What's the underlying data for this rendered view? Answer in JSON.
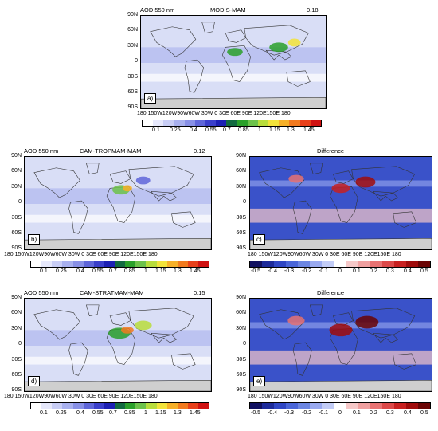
{
  "chart_data": [
    {
      "id": "a",
      "type": "heatmap",
      "variable_label": "AOD 550 nm",
      "title": "MODIS-MAM",
      "global_mean": "0.18",
      "panel_label": "a)",
      "y_tick_labels": [
        "90N",
        "60N",
        "30N",
        "0",
        "30S",
        "60S",
        "90S"
      ],
      "x_tick_labels": "180 150W120W90W60W 30W 0 30E 60E 90E 120E150E 180",
      "colorbar_labels": [
        "0.1",
        "0.25",
        "0.4",
        "0.55",
        "0.7",
        "0.85",
        "1",
        "1.15",
        "1.3",
        "1.45"
      ],
      "colorbar_colors": [
        "#ffffff",
        "#e6e8fb",
        "#c8cdf5",
        "#a8b0ee",
        "#8890e6",
        "#5f66d9",
        "#3a3fcb",
        "#1c20b4",
        "#126a40",
        "#2aa02a",
        "#6cc24a",
        "#b8dd3b",
        "#f2e33a",
        "#f6b028",
        "#f27a1e",
        "#e8401a",
        "#d01212"
      ]
    },
    {
      "id": "b",
      "type": "heatmap",
      "variable_label": "AOD 550 nm",
      "title": "CAM-TROPMAM-MAM",
      "global_mean": "0.12",
      "panel_label": "b)",
      "y_tick_labels": [
        "90N",
        "60N",
        "30N",
        "0",
        "30S",
        "60S",
        "90S"
      ],
      "x_tick_labels": "180 150W120W90W60W 30W 0 30E 60E 90E 120E150E 180",
      "colorbar_labels": [
        "0.1",
        "0.25",
        "0.4",
        "0.55",
        "0.7",
        "0.85",
        "1",
        "1.15",
        "1.3",
        "1.45"
      ],
      "colorbar_colors": [
        "#ffffff",
        "#e6e8fb",
        "#c8cdf5",
        "#a8b0ee",
        "#8890e6",
        "#5f66d9",
        "#3a3fcb",
        "#1c20b4",
        "#126a40",
        "#2aa02a",
        "#6cc24a",
        "#b8dd3b",
        "#f2e33a",
        "#f6b028",
        "#f27a1e",
        "#e8401a",
        "#d01212"
      ]
    },
    {
      "id": "c",
      "type": "heatmap",
      "title": "Difference",
      "panel_label": "c)",
      "y_tick_labels": [
        "90N",
        "60N",
        "30N",
        "0",
        "30S",
        "60S",
        "90S"
      ],
      "x_tick_labels": "180 150W120W90W60W 30W 0 30E 60E 90E 120E150E 180",
      "colorbar_labels": [
        "-0.5",
        "-0.4",
        "-0.3",
        "-0.2",
        "-0.1",
        "0",
        "0.1",
        "0.2",
        "0.3",
        "0.4",
        "0.5"
      ],
      "colorbar_colors": [
        "#101060",
        "#1c2a9a",
        "#2f46c4",
        "#4a66d8",
        "#6c86e2",
        "#9aaaf0",
        "#c2ccf6",
        "#ffffff",
        "#f6c8c8",
        "#f0a0a0",
        "#e87272",
        "#dc4848",
        "#c82020",
        "#a00c0c",
        "#6a0404"
      ]
    },
    {
      "id": "d",
      "type": "heatmap",
      "variable_label": "AOD 550 nm",
      "title": "CAM-STRATMAM-MAM",
      "global_mean": "0.15",
      "panel_label": "d)",
      "y_tick_labels": [
        "90N",
        "60N",
        "30N",
        "0",
        "30S",
        "60S",
        "90S"
      ],
      "x_tick_labels": "180 150W120W90W60W 30W 0 30E 60E 90E 120E150E 180",
      "colorbar_labels": [
        "0.1",
        "0.25",
        "0.4",
        "0.55",
        "0.7",
        "0.85",
        "1",
        "1.15",
        "1.3",
        "1.45"
      ],
      "colorbar_colors": [
        "#ffffff",
        "#e6e8fb",
        "#c8cdf5",
        "#a8b0ee",
        "#8890e6",
        "#5f66d9",
        "#3a3fcb",
        "#1c20b4",
        "#126a40",
        "#2aa02a",
        "#6cc24a",
        "#b8dd3b",
        "#f2e33a",
        "#f6b028",
        "#f27a1e",
        "#e8401a",
        "#d01212"
      ]
    },
    {
      "id": "e",
      "type": "heatmap",
      "title": "Difference",
      "panel_label": "e)",
      "y_tick_labels": [
        "90N",
        "60N",
        "30N",
        "0",
        "30S",
        "60S",
        "90S"
      ],
      "x_tick_labels": "180 150W120W90W60W 30W 0 30E 60E 90E 120E150E 180",
      "colorbar_labels": [
        "-0.5",
        "-0.4",
        "-0.3",
        "-0.2",
        "-0.1",
        "0",
        "0.1",
        "0.2",
        "0.3",
        "0.4",
        "0.5"
      ],
      "colorbar_colors": [
        "#101060",
        "#1c2a9a",
        "#2f46c4",
        "#4a66d8",
        "#6c86e2",
        "#9aaaf0",
        "#c2ccf6",
        "#ffffff",
        "#f6c8c8",
        "#f0a0a0",
        "#e87272",
        "#dc4848",
        "#c82020",
        "#a00c0c",
        "#6a0404"
      ]
    }
  ]
}
